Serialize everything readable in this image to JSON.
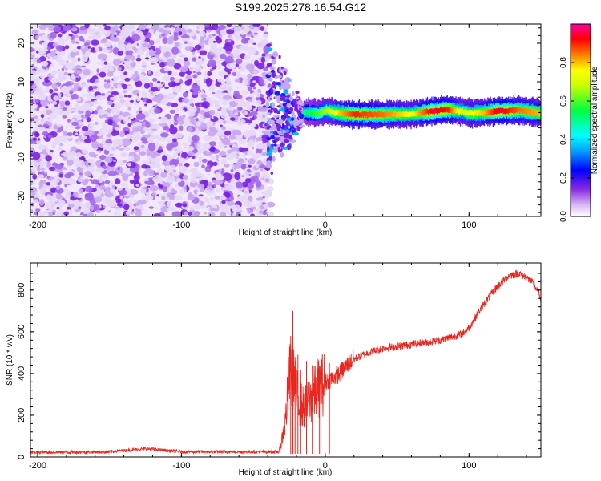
{
  "title": "S199.2025.278.16.54.G12",
  "chart_data": [
    {
      "type": "heatmap",
      "name": "spectrogram",
      "xlabel": "Height of straight line (km)",
      "ylabel": "Frequency (Hz)",
      "xlim": [
        -205,
        150
      ],
      "ylim": [
        -25,
        25
      ],
      "xticks": [
        -200,
        -100,
        0,
        100
      ],
      "yticks": [
        -20,
        -10,
        0,
        10,
        20
      ],
      "noise_region_x": [
        -205,
        -40
      ],
      "transition_region_x": [
        -40,
        -15
      ],
      "ridge": {
        "description_free": true,
        "x": [
          -15,
          -5,
          0,
          10,
          20,
          40,
          60,
          75,
          85,
          95,
          100,
          110,
          120,
          135,
          150
        ],
        "freq": [
          2.0,
          1.8,
          2.5,
          1.8,
          1.5,
          1.5,
          1.6,
          2.4,
          2.8,
          2.3,
          1.8,
          2.0,
          2.4,
          2.6,
          1.8
        ],
        "amplitude": [
          0.5,
          0.6,
          0.65,
          0.8,
          0.9,
          0.85,
          0.75,
          0.95,
          0.9,
          0.7,
          0.75,
          0.8,
          0.95,
          0.85,
          0.8
        ]
      },
      "colorbar": {
        "label": "Normalized spectral amplitude",
        "range": [
          0.0,
          1.0
        ],
        "ticks": [
          "0.0",
          "0.2",
          "0.4",
          "0.6",
          "0.8"
        ],
        "tick_values": [
          0.0,
          0.2,
          0.4,
          0.6,
          0.8
        ]
      }
    },
    {
      "type": "line",
      "name": "snr",
      "xlabel": "Height of straight line (km)",
      "ylabel": "SNR (10 * v/v)",
      "xlim": [
        -205,
        150
      ],
      "ylim": [
        0,
        930
      ],
      "xticks": [
        -200,
        -100,
        0,
        100
      ],
      "yticks": [
        0,
        200,
        400,
        600,
        800
      ],
      "series_color": "#e8271f",
      "envelope": {
        "x": [
          -205,
          -150,
          -125,
          -100,
          -60,
          -32,
          -28,
          -25,
          -22,
          -20,
          -15,
          -10,
          -5,
          0,
          5,
          10,
          15,
          20,
          30,
          40,
          60,
          80,
          95,
          100,
          110,
          120,
          128,
          135,
          140,
          145,
          150
        ],
        "y": [
          22,
          25,
          40,
          25,
          25,
          25,
          150,
          380,
          400,
          300,
          230,
          280,
          330,
          360,
          380,
          400,
          440,
          470,
          500,
          520,
          540,
          560,
          590,
          620,
          730,
          820,
          870,
          880,
          860,
          830,
          760
        ]
      },
      "spikes": {
        "x": [
          -24,
          -22.5,
          -21,
          -19,
          -17,
          -13,
          -9,
          -4,
          3
        ],
        "y": [
          580,
          700,
          480,
          490,
          420,
          460,
          440,
          430,
          450
        ]
      }
    }
  ],
  "colors": {
    "noise_light": "#e6d8f5",
    "noise_dark": "#7a1fe6",
    "line": "#e8271f"
  }
}
